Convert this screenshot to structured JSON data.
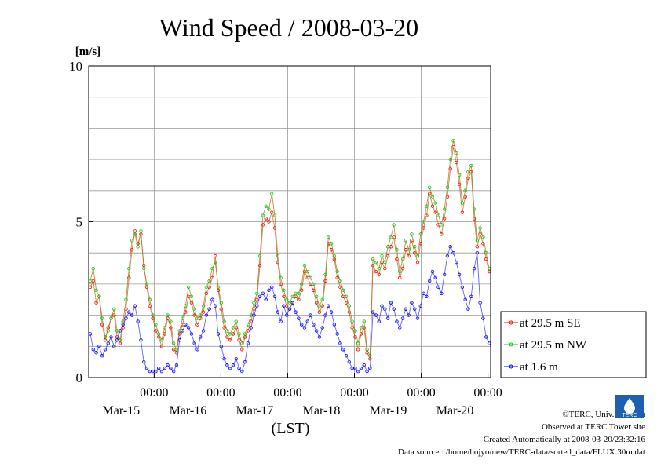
{
  "chart_data": {
    "type": "line",
    "title": "Wind Speed / 2008-03-20",
    "ylabel": "[m/s]",
    "xlabel": "(LST)",
    "ylim": [
      0,
      10
    ],
    "yticks": [
      "0",
      "5",
      "10"
    ],
    "x_tick_labels": [
      {
        "time": "00:00",
        "date": "Mar-15"
      },
      {
        "time": "00:00",
        "date": "Mar-16"
      },
      {
        "time": "00:00",
        "date": "Mar-17"
      },
      {
        "time": "00:00",
        "date": "Mar-18"
      },
      {
        "time": "00:00",
        "date": "Mar-19"
      },
      {
        "time": "00:00",
        "date": "Mar-20"
      }
    ],
    "grid": true,
    "legend_position": "right",
    "series": [
      {
        "name": "at 29.5 m SE",
        "color": "#ff0000",
        "values": [
          2.9,
          3.1,
          2.4,
          2.6,
          1.7,
          1.2,
          1.6,
          1.9,
          2.0,
          1.3,
          1.1,
          1.6,
          2.2,
          3.2,
          4.1,
          4.7,
          4.3,
          4.6,
          3.6,
          2.9,
          2.3,
          1.9,
          1.5,
          1.3,
          1.0,
          1.4,
          1.9,
          1.6,
          0.9,
          0.8,
          1.4,
          1.7,
          2.1,
          2.6,
          2.4,
          2.0,
          1.7,
          1.9,
          2.1,
          2.7,
          2.9,
          3.2,
          3.9,
          2.8,
          2.2,
          1.6,
          1.3,
          1.2,
          1.4,
          1.6,
          1.2,
          0.9,
          1.3,
          1.5,
          1.8,
          2.2,
          2.5,
          3.6,
          4.9,
          5.1,
          5.0,
          5.3,
          4.8,
          3.7,
          3.0,
          2.6,
          2.3,
          2.2,
          2.4,
          2.6,
          2.5,
          2.8,
          3.4,
          3.2,
          3.0,
          2.8,
          2.4,
          2.1,
          2.3,
          3.1,
          4.3,
          4.1,
          3.8,
          3.2,
          2.9,
          2.6,
          2.4,
          2.1,
          1.6,
          1.3,
          0.9,
          1.4,
          1.6,
          0.8,
          0.6,
          3.6,
          3.4,
          3.3,
          3.7,
          3.5,
          3.9,
          4.2,
          4.5,
          3.8,
          3.2,
          3.5,
          4.1,
          3.9,
          4.4,
          4.0,
          3.7,
          4.3,
          4.8,
          5.2,
          5.9,
          5.5,
          5.3,
          4.9,
          4.6,
          5.1,
          5.8,
          6.7,
          7.4,
          6.9,
          6.2,
          5.3,
          5.8,
          6.4,
          6.6,
          5.1,
          4.2,
          4.6,
          4.3,
          3.8,
          3.4
        ]
      },
      {
        "name": "at 29.5 m NW",
        "color": "#00cc00",
        "values": [
          3.1,
          3.5,
          2.8,
          2.6,
          1.9,
          1.3,
          1.5,
          1.9,
          2.2,
          1.5,
          1.2,
          1.8,
          2.5,
          3.5,
          4.4,
          4.6,
          4.2,
          4.7,
          3.5,
          3.0,
          2.5,
          2.0,
          1.7,
          1.4,
          1.2,
          1.6,
          2.0,
          1.8,
          1.1,
          0.9,
          1.5,
          1.9,
          2.3,
          2.9,
          2.6,
          2.2,
          1.9,
          2.0,
          2.3,
          2.9,
          3.1,
          3.5,
          3.7,
          2.9,
          2.4,
          1.8,
          1.5,
          1.4,
          1.6,
          1.8,
          1.4,
          1.1,
          1.4,
          1.7,
          2.0,
          2.4,
          2.7,
          3.9,
          5.2,
          5.5,
          5.4,
          5.9,
          5.2,
          3.9,
          3.2,
          2.8,
          2.5,
          2.4,
          2.6,
          2.7,
          2.7,
          3.0,
          3.6,
          3.4,
          3.2,
          3.0,
          2.6,
          2.3,
          2.5,
          3.3,
          4.5,
          4.3,
          3.9,
          3.4,
          3.1,
          2.8,
          2.6,
          2.3,
          1.8,
          1.5,
          1.1,
          1.6,
          1.8,
          0.9,
          0.7,
          3.8,
          3.7,
          3.5,
          3.9,
          3.7,
          4.2,
          4.5,
          4.9,
          4.1,
          3.4,
          3.8,
          4.4,
          4.1,
          4.6,
          4.2,
          3.9,
          4.6,
          5.0,
          5.5,
          6.1,
          5.8,
          5.6,
          5.2,
          4.9,
          5.4,
          6.1,
          7.0,
          7.6,
          7.2,
          6.5,
          5.6,
          6.0,
          6.6,
          6.8,
          5.4,
          4.4,
          4.8,
          4.5,
          4.0,
          3.5
        ]
      },
      {
        "name": "at 1.6 m",
        "color": "#0000ff",
        "values": [
          1.4,
          0.9,
          0.8,
          1.0,
          0.7,
          0.9,
          1.1,
          1.3,
          1.0,
          1.2,
          1.5,
          1.7,
          1.9,
          2.1,
          2.0,
          2.3,
          1.8,
          1.2,
          0.5,
          0.3,
          0.2,
          0.2,
          0.2,
          0.3,
          0.2,
          0.3,
          0.4,
          0.3,
          0.2,
          0.4,
          1.2,
          1.5,
          1.7,
          1.6,
          1.4,
          1.1,
          0.9,
          1.3,
          1.5,
          2.0,
          2.2,
          2.5,
          2.3,
          1.4,
          1.0,
          0.6,
          0.4,
          0.3,
          0.4,
          0.6,
          0.3,
          0.2,
          0.5,
          1.1,
          1.6,
          2.0,
          2.3,
          2.6,
          2.7,
          2.5,
          2.8,
          2.9,
          2.6,
          2.1,
          1.8,
          2.3,
          2.0,
          2.2,
          2.4,
          2.1,
          1.9,
          1.7,
          1.6,
          1.8,
          2.0,
          1.7,
          1.5,
          1.3,
          1.6,
          2.0,
          2.3,
          2.1,
          1.7,
          1.4,
          1.1,
          0.9,
          0.7,
          0.5,
          0.3,
          0.3,
          0.2,
          0.3,
          0.4,
          0.2,
          0.3,
          2.1,
          2.0,
          1.8,
          2.3,
          2.2,
          1.9,
          2.4,
          2.2,
          1.8,
          1.6,
          1.9,
          2.2,
          2.0,
          2.4,
          2.2,
          1.9,
          2.3,
          2.7,
          2.6,
          3.1,
          3.4,
          3.2,
          2.9,
          2.7,
          3.3,
          3.9,
          4.2,
          4.0,
          3.7,
          3.3,
          2.9,
          2.5,
          2.2,
          2.6,
          3.5,
          4.0,
          2.4,
          1.9,
          1.3,
          1.1
        ]
      }
    ]
  },
  "footer": {
    "copyright": "©TERC, Univ. Tsukuba",
    "observed": "Observed at TERC Tower site",
    "created": "Created Automatically at 2008-03-20/23:32:16",
    "source": "Data source : /home/hojyo/new/TERC-data/sorted_data/FLUX.30m.dat",
    "logo_text": "TERC"
  }
}
